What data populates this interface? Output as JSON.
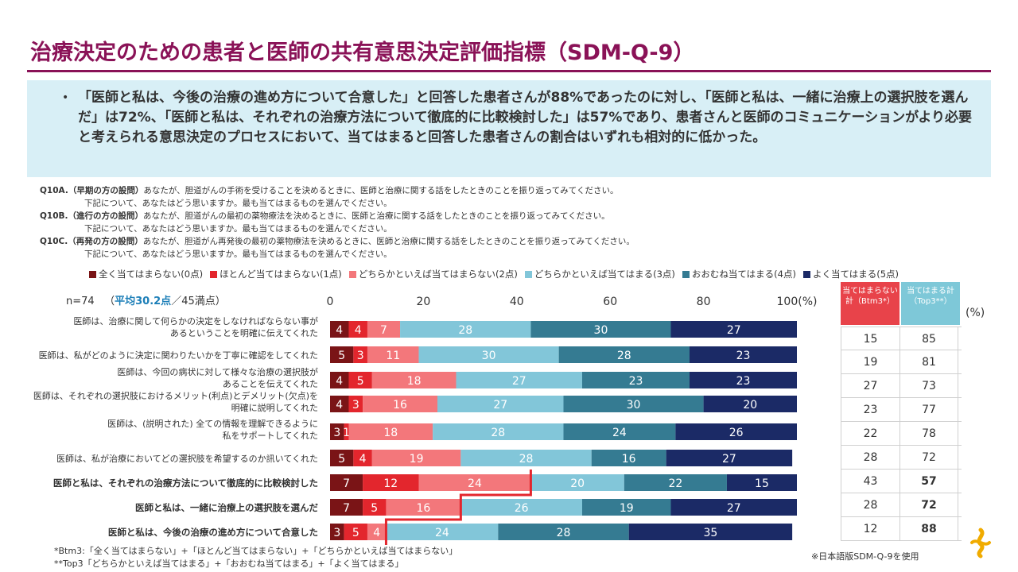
{
  "title": "治療決定のための患者と医師の共有意思決定評価指標（SDM-Q-9）",
  "summary": "「医師と私は、今後の治療の進め方について合意した」と回答した患者さんが88%であったのに対し、「医師と私は、一緒に治療上の選択肢を選んだ」は72%、「医師と私は、それぞれの治療方法について徹底的に比較検討した」は57%であり、患者さんと医師のコミュニケーションがより必要と考えられる意思決定のプロセスにおいて、当てはまると回答した患者さんの割合はいずれも相対的に低かった。",
  "questions": [
    {
      "label": "Q10A.（早期の方の設問）",
      "text": "あなたが、胆道がんの手術を受けることを決めるときに、医師と治療に関する話をしたときのことを振り返ってみてください。",
      "sub": "下記について、あなたはどう思いますか。最も当てはまるものを選んでください。"
    },
    {
      "label": "Q10B.（進行の方の設問）",
      "text": "あなたが、胆道がんの最初の薬物療法を決めるときに、医師と治療に関する話をしたときのことを振り返ってみてください。",
      "sub": "下記について、あなたはどう思いますか。最も当てはまるものを選んでください。"
    },
    {
      "label": "Q10C.（再発の方の設問）",
      "text": "あなたが、胆道がん再発後の最初の薬物療法を決めるときに、医師と治療に関する話をしたときのことを振り返ってみてください。",
      "sub": "下記について、あなたはどう思いますか。最も当てはまるものを選んでください。"
    }
  ],
  "n_label": "n=74",
  "avg_open": "（",
  "avg_label": "平均30.2点",
  "avg_rest": "／45満点）",
  "right_headers": {
    "btm": "当てはまらない計（Btm3*）",
    "top": "当てはまる計（Top3**）"
  },
  "pct_unit": "(%)",
  "footnotes": [
    "*Btm3:「全く当てはまらない」+「ほとんど当てはまらない」+「どちらかといえば当てはまらない」",
    "**Top3「どちらかといえば当てはまる」+「おおむね当てはまる」+「よく当てはまる」"
  ],
  "japan_note": "※日本語版SDM-Q-9を使用",
  "chart_data": {
    "type": "bar",
    "orientation": "horizontal-stacked-100",
    "xlim": [
      0,
      100
    ],
    "ticks": [
      0,
      20,
      40,
      60,
      80
    ],
    "tick_labels": [
      "0",
      "20",
      "40",
      "60",
      "80",
      "100(%)"
    ],
    "colors": [
      "#7a1416",
      "#e3262d",
      "#f3777b",
      "#82c6d9",
      "#357b92",
      "#1b2a66"
    ],
    "series_names": [
      "全く当てはまらない(0点)",
      "ほとんど当てはまらない(1点)",
      "どちらかといえば当てはまらない(2点)",
      "どちらかといえば当てはまる(3点)",
      "おおむね当てはまる(4点)",
      "よく当てはまる(5点)"
    ],
    "categories": [
      [
        "医師は、治療に関して何らかの決定をしなければならない事が",
        "あるということを明確に伝えてくれた"
      ],
      [
        "医師は、私がどのように決定に関わりたいかを丁寧に確認をしてくれた"
      ],
      [
        "医師は、今回の病状に対して様々な治療の選択肢が",
        "あることを伝えてくれた"
      ],
      [
        "医師は、それぞれの選択肢におけるメリット(利点)とデメリット(欠点)を",
        "明確に説明してくれた"
      ],
      [
        "医師は、(説明された) 全ての情報を理解できるように",
        "私をサポートしてくれた"
      ],
      [
        "医師は、私が治療においてどの選択肢を希望するのか訊いてくれた"
      ],
      [
        "医師と私は、それぞれの治療方法について徹底的に比較検討した"
      ],
      [
        "医師と私は、一緒に治療上の選択肢を選んだ"
      ],
      [
        "医師と私は、今後の治療の進め方について合意した"
      ]
    ],
    "bold_rows": [
      6,
      7,
      8
    ],
    "values": [
      [
        4,
        4,
        7,
        28,
        30,
        27
      ],
      [
        5,
        3,
        11,
        30,
        28,
        23
      ],
      [
        4,
        5,
        18,
        27,
        23,
        23
      ],
      [
        4,
        3,
        16,
        27,
        30,
        20
      ],
      [
        3,
        1,
        18,
        28,
        24,
        26
      ],
      [
        5,
        4,
        19,
        28,
        16,
        27
      ],
      [
        7,
        12,
        24,
        20,
        22,
        15
      ],
      [
        7,
        5,
        16,
        26,
        19,
        27
      ],
      [
        3,
        5,
        4,
        24,
        28,
        35
      ]
    ],
    "btm3": [
      15,
      19,
      27,
      23,
      22,
      28,
      43,
      28,
      12
    ],
    "top3": [
      85,
      81,
      73,
      77,
      78,
      72,
      57,
      72,
      88
    ],
    "top3_bold_rows": [
      6,
      7,
      8
    ]
  }
}
